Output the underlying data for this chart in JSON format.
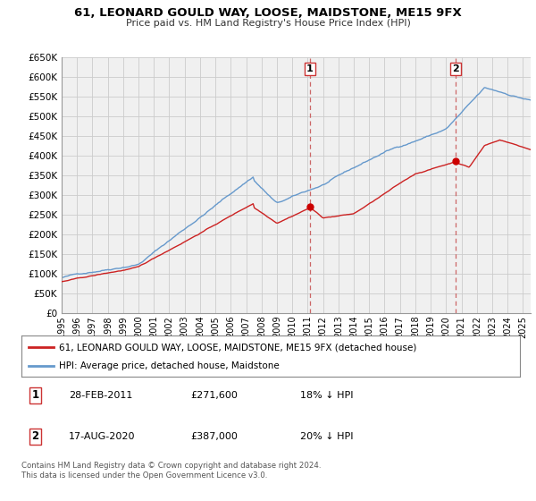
{
  "title": "61, LEONARD GOULD WAY, LOOSE, MAIDSTONE, ME15 9FX",
  "subtitle": "Price paid vs. HM Land Registry's House Price Index (HPI)",
  "legend_line1": "61, LEONARD GOULD WAY, LOOSE, MAIDSTONE, ME15 9FX (detached house)",
  "legend_line2": "HPI: Average price, detached house, Maidstone",
  "annotation1_label": "1",
  "annotation1_date": "28-FEB-2011",
  "annotation1_price": "£271,600",
  "annotation1_hpi": "18% ↓ HPI",
  "annotation1_year": 2011.15,
  "annotation1_value": 271600,
  "annotation2_label": "2",
  "annotation2_date": "17-AUG-2020",
  "annotation2_price": "£387,000",
  "annotation2_hpi": "20% ↓ HPI",
  "annotation2_year": 2020.63,
  "annotation2_value": 387000,
  "yticks": [
    0,
    50000,
    100000,
    150000,
    200000,
    250000,
    300000,
    350000,
    400000,
    450000,
    500000,
    550000,
    600000,
    650000
  ],
  "ytick_labels": [
    "£0",
    "£50K",
    "£100K",
    "£150K",
    "£200K",
    "£250K",
    "£300K",
    "£350K",
    "£400K",
    "£450K",
    "£500K",
    "£550K",
    "£600K",
    "£650K"
  ],
  "xmin": 1995.0,
  "xmax": 2025.5,
  "ymin": 0,
  "ymax": 650000,
  "hpi_color": "#6699cc",
  "price_color": "#cc2222",
  "dot_color": "#cc0000",
  "vline_color": "#cc6666",
  "grid_color": "#cccccc",
  "bg_color": "#f0f0f0",
  "footnote": "Contains HM Land Registry data © Crown copyright and database right 2024.\nThis data is licensed under the Open Government Licence v3.0.",
  "xtick_years": [
    1995,
    1996,
    1997,
    1998,
    1999,
    2000,
    2001,
    2002,
    2003,
    2004,
    2005,
    2006,
    2007,
    2008,
    2009,
    2010,
    2011,
    2012,
    2013,
    2014,
    2015,
    2016,
    2017,
    2018,
    2019,
    2020,
    2021,
    2022,
    2023,
    2024,
    2025
  ]
}
